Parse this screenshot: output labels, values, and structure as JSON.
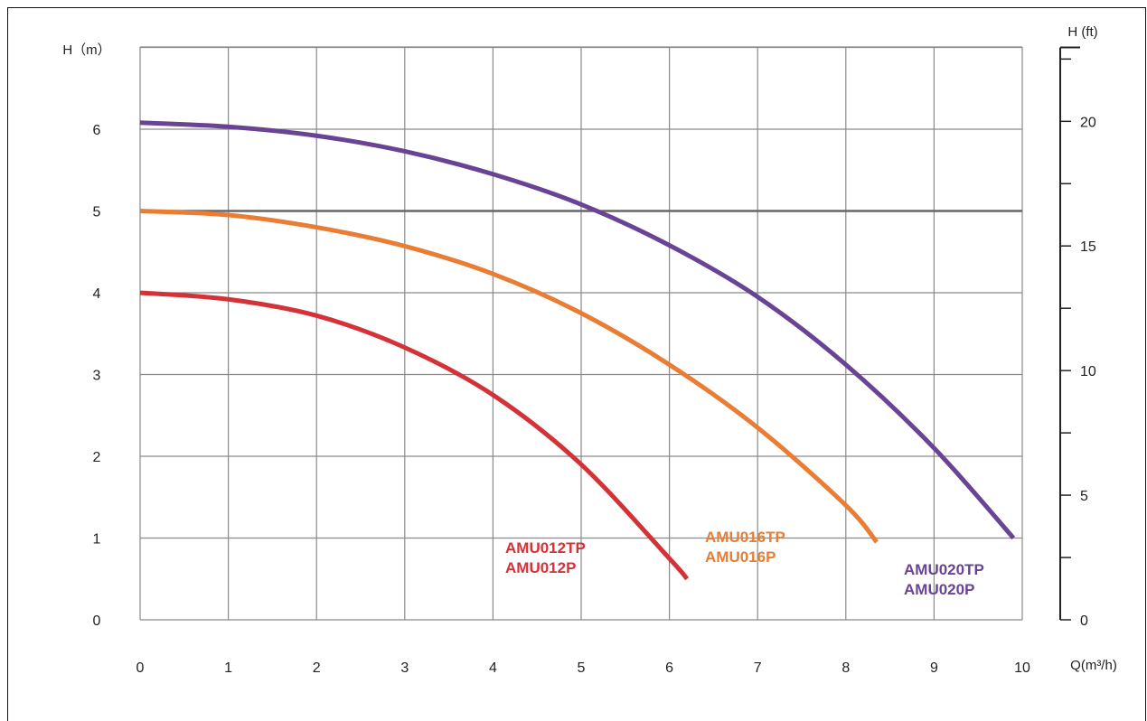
{
  "chart_data": {
    "type": "line",
    "title": "",
    "xlabel": "Q(m³/h)",
    "ylabel": "H（m）",
    "y2label": "H (ft)",
    "xlim": [
      0,
      10
    ],
    "ylim": [
      0,
      7
    ],
    "y2lim": [
      0,
      22.966
    ],
    "x_ticks": [
      0,
      1,
      2,
      3,
      4,
      5,
      6,
      7,
      8,
      9,
      10
    ],
    "y_ticks": [
      0,
      1,
      2,
      3,
      4,
      5,
      6
    ],
    "y2_major_ticks": [
      0,
      5,
      10,
      15,
      20
    ],
    "y2_minor_ticks": [
      2.5,
      7.5,
      12.5,
      17.5,
      22.5
    ],
    "grid": true,
    "series": [
      {
        "name": "AMU012TP\nAMU012P",
        "label_lines": [
          "AMU012TP",
          "AMU012P"
        ],
        "color": "#d33338",
        "x": [
          0,
          1,
          2,
          3,
          4,
          5,
          6,
          6.2
        ],
        "y": [
          4.0,
          3.92,
          3.72,
          3.33,
          2.75,
          1.9,
          0.75,
          0.5
        ]
      },
      {
        "name": "AMU016TP\nAMU016P",
        "label_lines": [
          "AMU016TP",
          "AMU016P"
        ],
        "color": "#e87d33",
        "x": [
          0,
          1,
          2,
          3,
          4,
          5,
          6,
          7,
          8,
          8.35
        ],
        "y": [
          5.0,
          4.95,
          4.8,
          4.57,
          4.23,
          3.75,
          3.12,
          2.35,
          1.4,
          0.95
        ]
      },
      {
        "name": "AMU020TP\nAMU020P",
        "label_lines": [
          "AMU020TP",
          "AMU020P"
        ],
        "color": "#6a4494",
        "x": [
          0,
          1,
          2,
          3,
          4,
          5,
          6,
          7,
          8,
          9,
          9.9
        ],
        "y": [
          6.08,
          6.03,
          5.92,
          5.73,
          5.45,
          5.08,
          4.58,
          3.95,
          3.12,
          2.1,
          1.0
        ]
      }
    ],
    "highlight_line_y": 5
  }
}
